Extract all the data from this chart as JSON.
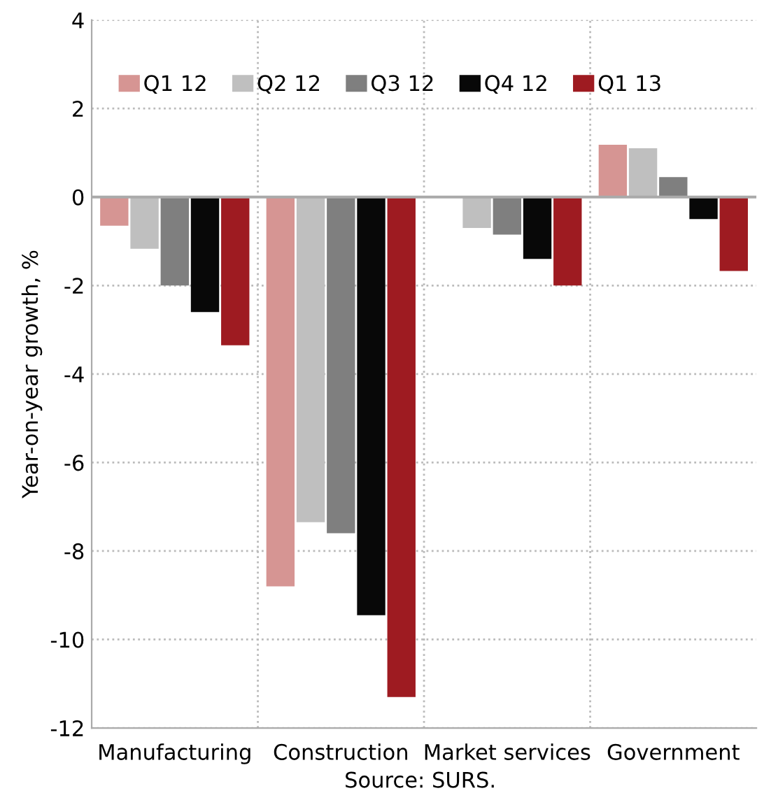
{
  "chart_data": {
    "type": "bar",
    "ylabel": "Year-on-year growth, %",
    "annotations": [
      "Source: SURS."
    ],
    "categories": [
      "Manufacturing",
      "Construction",
      "Market services",
      "Government"
    ],
    "series": [
      {
        "name": "Q1 12",
        "color": "#d69593",
        "values": [
          -0.65,
          -8.8,
          0,
          1.18
        ]
      },
      {
        "name": "Q2 12",
        "color": "#bfbfbf",
        "values": [
          -1.17,
          -7.35,
          -0.7,
          1.1
        ]
      },
      {
        "name": "Q3 12",
        "color": "#7f7f7f",
        "values": [
          -2.0,
          -7.6,
          -0.85,
          0.45
        ]
      },
      {
        "name": "Q4 12",
        "color": "#080808",
        "values": [
          -2.6,
          -9.45,
          -1.4,
          -0.5
        ]
      },
      {
        "name": "Q1 13",
        "color": "#9e1b21",
        "values": [
          -3.35,
          -11.3,
          -2.0,
          -1.67
        ]
      }
    ],
    "ylim": [
      -12,
      4
    ],
    "yticks": [
      -12,
      -10,
      -8,
      -6,
      -4,
      -2,
      0,
      2,
      4
    ],
    "grid": true,
    "legend": "top"
  }
}
